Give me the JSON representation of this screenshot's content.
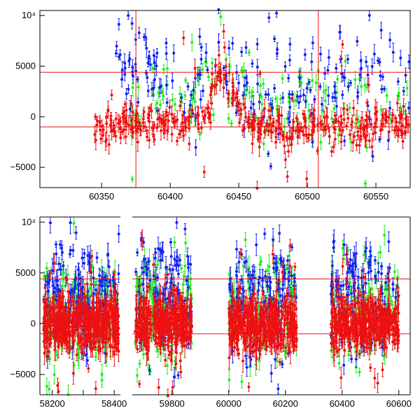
{
  "colors": {
    "red": "#ee1111",
    "green": "#22ee22",
    "blue": "#1122ee",
    "frame": "#000000"
  },
  "chart_data": [
    {
      "type": "scatter",
      "title": "",
      "xlabel": "",
      "ylabel": "",
      "xlim": [
        60305,
        60575
      ],
      "ylim": [
        -7000,
        10500
      ],
      "x_ticks": [
        {
          "value": 60350,
          "label": "60350"
        },
        {
          "value": 60400,
          "label": "60400"
        },
        {
          "value": 60450,
          "label": "60450"
        },
        {
          "value": 60500,
          "label": "60500"
        },
        {
          "value": 60550,
          "label": "60550"
        }
      ],
      "y_ticks": [
        {
          "value": 10000,
          "label": "10⁴"
        },
        {
          "value": 5000,
          "label": "5000"
        },
        {
          "value": 0,
          "label": "0"
        },
        {
          "value": -5000,
          "label": "−5000"
        }
      ],
      "reference_lines": {
        "horizontal": [
          4400,
          -1000
        ],
        "vertical": [
          60375,
          60508
        ]
      },
      "series": [
        {
          "color": "red",
          "x_range": [
            60345,
            60575
          ],
          "baseline": -800,
          "scatter": 900,
          "n": 430
        },
        {
          "color": "green",
          "x_range": [
            60370,
            60575
          ],
          "baseline": 1500,
          "scatter": 2200,
          "n": 140
        },
        {
          "color": "blue",
          "x_range": [
            60360,
            60575
          ],
          "baseline": 3500,
          "scatter": 2800,
          "n": 200
        }
      ],
      "features": [
        {
          "center": 60438,
          "width": 10,
          "amplitude": 5200
        },
        {
          "center": 60485,
          "width": 3,
          "amplitude": -3500
        }
      ]
    },
    {
      "type": "scatter",
      "title": "",
      "xlabel": "",
      "ylabel": "",
      "broken_axis": true,
      "ylim": [
        -7000,
        10500
      ],
      "panels": [
        {
          "xlim": [
            58160,
            58420
          ]
        },
        {
          "xlim": [
            59660,
            60640
          ]
        }
      ],
      "x_ticks": [
        {
          "panel": 0,
          "value": 58200,
          "label": "58200"
        },
        {
          "panel": 0,
          "value": 58300,
          "label": ""
        },
        {
          "panel": 0,
          "value": 58400,
          "label": "58400"
        },
        {
          "panel": 1,
          "value": 59800,
          "label": "59800"
        },
        {
          "panel": 1,
          "value": 60000,
          "label": "60000"
        },
        {
          "panel": 1,
          "value": 60200,
          "label": "60200"
        },
        {
          "panel": 1,
          "value": 60400,
          "label": "60400"
        },
        {
          "panel": 1,
          "value": 60600,
          "label": "60600"
        }
      ],
      "y_ticks": [
        {
          "value": 10000,
          "label": "10⁴"
        },
        {
          "value": 5000,
          "label": "5000"
        },
        {
          "value": 0,
          "label": "0"
        },
        {
          "value": -5000,
          "label": "−5000"
        }
      ],
      "reference_lines": {
        "horizontal": [
          4400,
          -1000
        ]
      },
      "seasons": [
        {
          "panel": 0,
          "x_range": [
            58172,
            58415
          ],
          "n": 520
        },
        {
          "panel": 1,
          "x_range": [
            59670,
            59870
          ],
          "n": 380
        },
        {
          "panel": 1,
          "x_range": [
            60000,
            60240
          ],
          "n": 420
        },
        {
          "panel": 1,
          "x_range": [
            60360,
            60600
          ],
          "n": 400
        }
      ],
      "series": [
        {
          "color": "red",
          "baseline": 0,
          "scatter": 1300
        },
        {
          "color": "green",
          "baseline": 1200,
          "scatter": 2600
        },
        {
          "color": "blue",
          "baseline": 2500,
          "scatter": 3000
        }
      ]
    }
  ]
}
